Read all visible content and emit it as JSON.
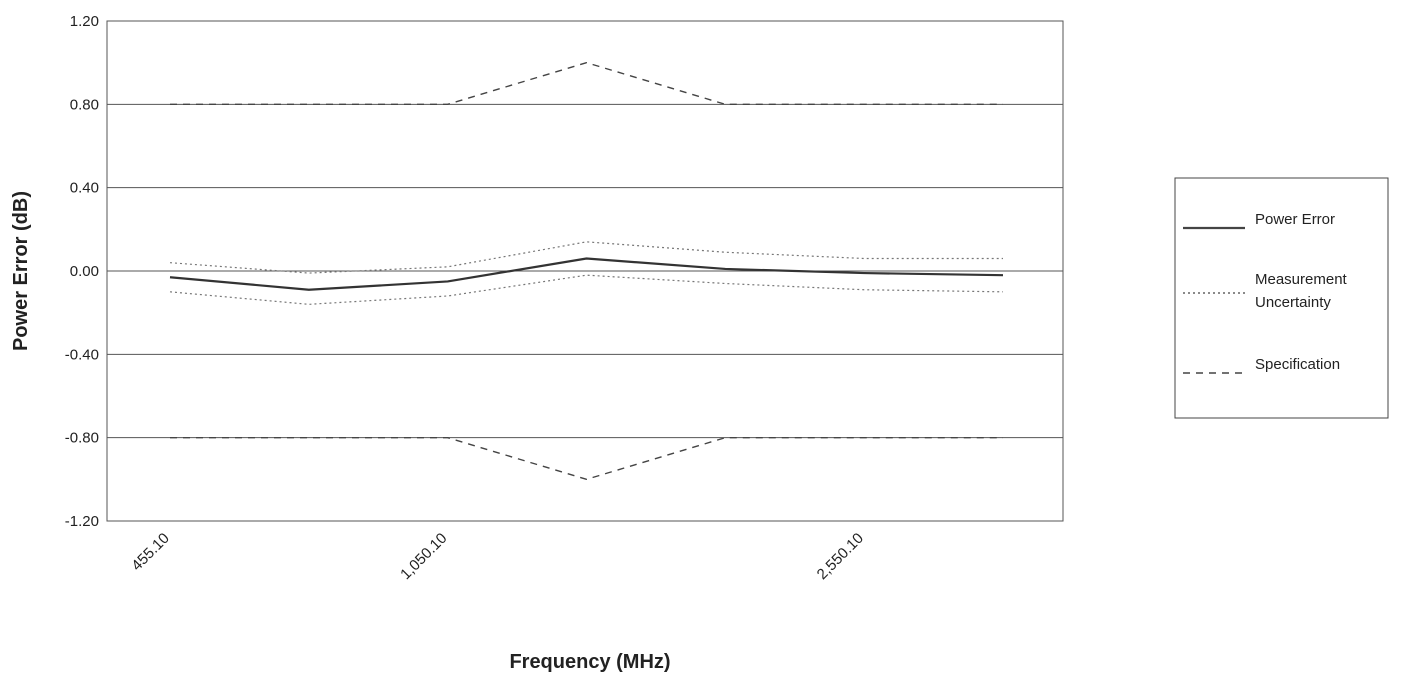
{
  "chart_data": {
    "type": "line",
    "xlabel": "Frequency (MHz)",
    "ylabel": "Power Error (dB)",
    "ylim": [
      -1.2,
      1.2
    ],
    "y_ticks": [
      "1.20",
      "0.80",
      "0.40",
      "0.00",
      "-0.40",
      "-0.80",
      "-1.20"
    ],
    "y_tick_values": [
      1.2,
      0.8,
      0.4,
      0.0,
      -0.4,
      -0.8,
      -1.2
    ],
    "categories": [
      "455.10",
      "",
      "1,050.10",
      "",
      "",
      "2,550.10",
      ""
    ],
    "grid": true,
    "legend_position": "right",
    "series": [
      {
        "name": "Power Error",
        "style": "solid",
        "color": "#333333",
        "values": [
          -0.03,
          -0.09,
          -0.05,
          0.06,
          0.01,
          -0.01,
          -0.02
        ]
      },
      {
        "name": "Measurement Uncertainty",
        "style": "dotted",
        "color": "#777777",
        "values": [
          0.04,
          -0.01,
          0.02,
          0.14,
          0.09,
          0.06,
          0.06
        ]
      },
      {
        "name": "Measurement Uncertainty",
        "style": "dotted",
        "color": "#777777",
        "values": [
          -0.1,
          -0.16,
          -0.12,
          -0.02,
          -0.06,
          -0.09,
          -0.1
        ],
        "legend": false
      },
      {
        "name": "Specification",
        "style": "dashed",
        "color": "#444444",
        "values": [
          0.8,
          0.8,
          0.8,
          1.0,
          0.8,
          0.8,
          0.8
        ]
      },
      {
        "name": "Specification",
        "style": "dashed",
        "color": "#444444",
        "values": [
          -0.8,
          -0.8,
          -0.8,
          -1.0,
          -0.8,
          -0.8,
          -0.8
        ],
        "legend": false
      }
    ],
    "legend": [
      {
        "lines": [
          "Power Error"
        ],
        "style": "solid"
      },
      {
        "lines": [
          "Measurement",
          "Uncertainty"
        ],
        "style": "dotted"
      },
      {
        "lines": [
          "Specification"
        ],
        "style": "dashed"
      }
    ]
  }
}
